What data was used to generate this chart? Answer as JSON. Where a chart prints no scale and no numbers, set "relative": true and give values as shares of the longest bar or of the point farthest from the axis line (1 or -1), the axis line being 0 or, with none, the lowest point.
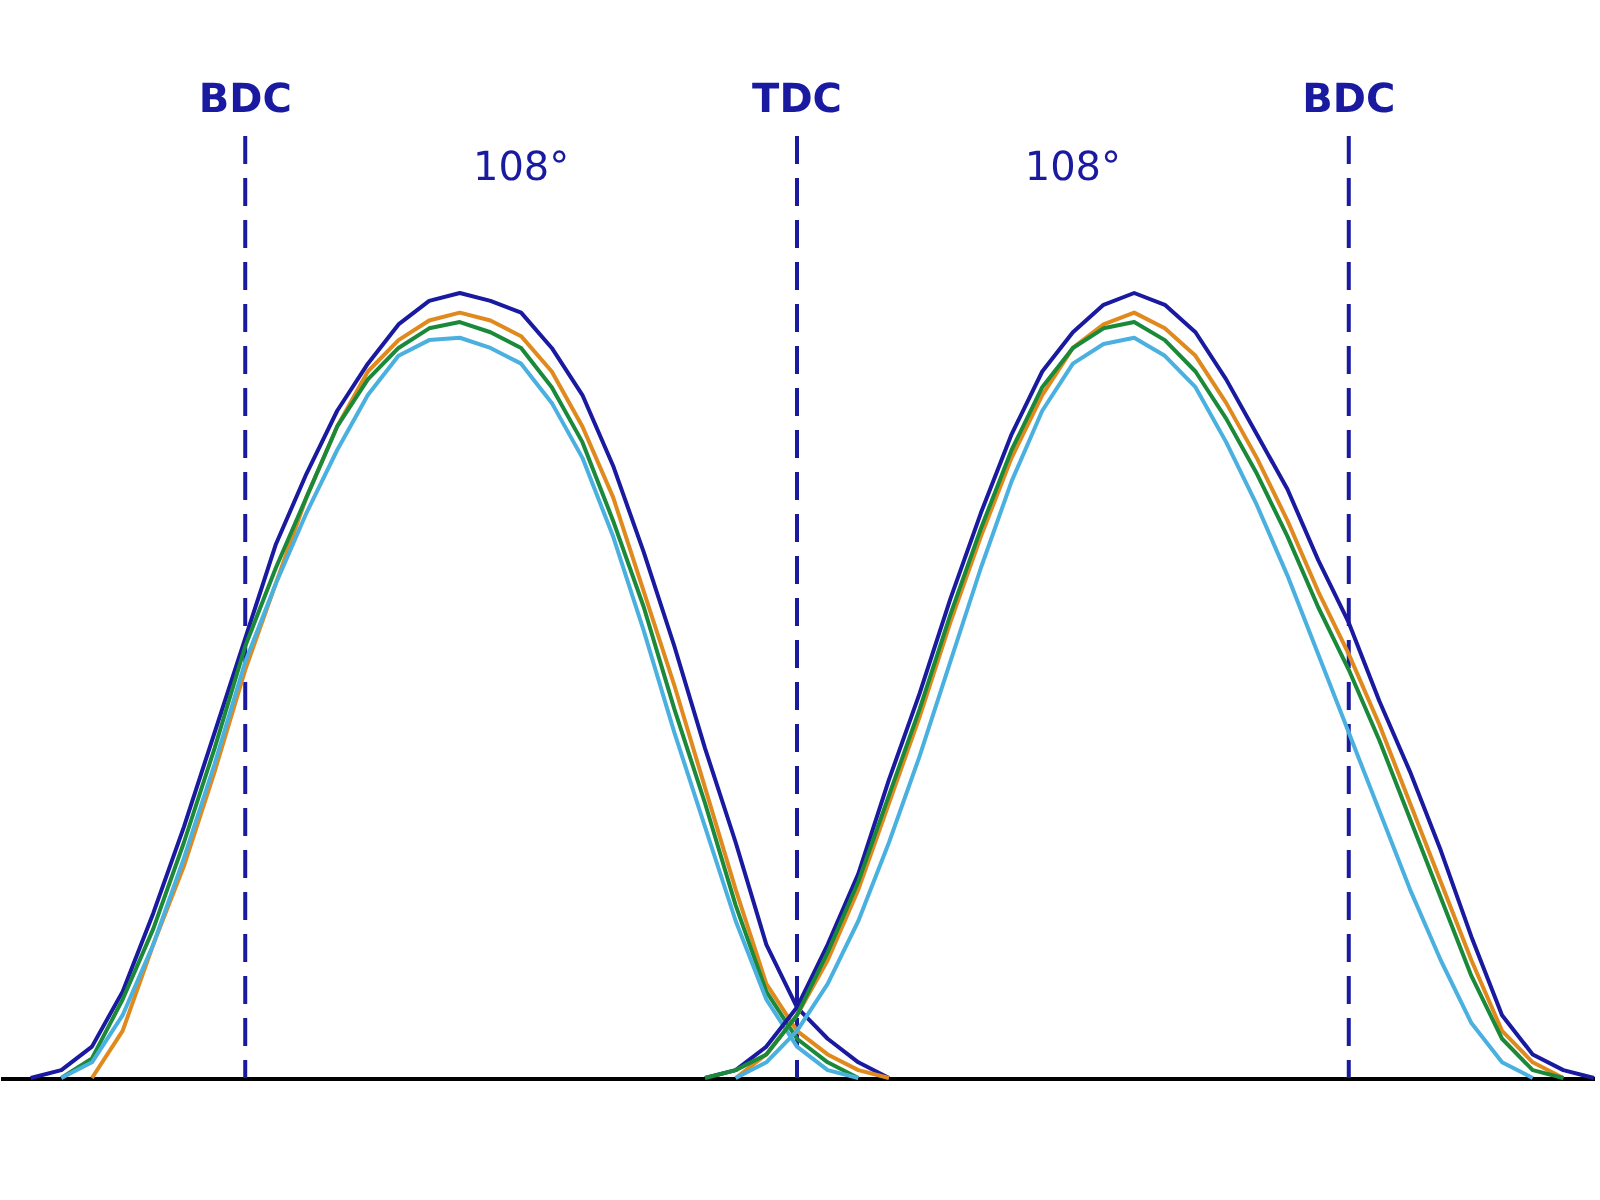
{
  "chart_data": {
    "type": "line",
    "relative": true,
    "grid": "x",
    "marker": "none",
    "line_style": "solid",
    "categories": [
      null,
      null,
      null,
      null,
      null,
      null,
      null,
      null,
      "BDC",
      null,
      null,
      null,
      null,
      null,
      null,
      null,
      null,
      null,
      null,
      null,
      null,
      null,
      null,
      null,
      null,
      null,
      "TDC",
      null,
      null,
      null,
      null,
      null,
      null,
      null,
      null,
      null,
      null,
      null,
      null,
      null,
      null,
      null,
      null,
      null,
      "BDC",
      null,
      null,
      null,
      null,
      null,
      null,
      null,
      null
    ],
    "series": [
      {
        "color": "#1a1aa0",
        "values": [
          null,
          0,
          0.01,
          0.04,
          0.11,
          0.21,
          0.32,
          0.44,
          0.56,
          0.68,
          0.77,
          0.85,
          0.91,
          0.96,
          0.99,
          1,
          0.99,
          0.975,
          0.93,
          0.87,
          0.78,
          0.67,
          0.55,
          0.42,
          0.3,
          0.17,
          0.09,
          0.05,
          0.02,
          0,
          null,
          null,
          null,
          null,
          null,
          null,
          null,
          null,
          null,
          null,
          null,
          null,
          null,
          null,
          null,
          null,
          null,
          null,
          null,
          null,
          null,
          null,
          null
        ]
      },
      {
        "color": "#e08a1e",
        "values": [
          null,
          null,
          null,
          0,
          0.06,
          0.17,
          0.27,
          0.39,
          0.52,
          0.63,
          0.74,
          0.83,
          0.9,
          0.94,
          0.965,
          0.975,
          0.965,
          0.945,
          0.9,
          0.83,
          0.74,
          0.62,
          0.5,
          0.37,
          0.24,
          0.12,
          0.06,
          0.03,
          0.01,
          0,
          null,
          null,
          null,
          null,
          null,
          null,
          null,
          null,
          null,
          null,
          null,
          null,
          null,
          null,
          null,
          null,
          null,
          null,
          null,
          null,
          null,
          null,
          null
        ]
      },
      {
        "color": "#1a8a3a",
        "values": [
          null,
          null,
          0,
          0.025,
          0.1,
          0.19,
          0.3,
          0.42,
          0.55,
          0.65,
          0.74,
          0.83,
          0.89,
          0.93,
          0.955,
          0.963,
          0.95,
          0.93,
          0.88,
          0.81,
          0.71,
          0.6,
          0.47,
          0.35,
          0.22,
          0.11,
          0.05,
          0.02,
          0,
          null,
          null,
          null,
          null,
          null,
          null,
          null,
          null,
          null,
          null,
          null,
          null,
          null,
          null,
          null,
          null,
          null,
          null,
          null,
          null,
          null,
          null,
          null,
          null
        ]
      },
      {
        "color": "#4ab0e0",
        "values": [
          null,
          null,
          0,
          0.02,
          0.08,
          0.17,
          0.28,
          0.4,
          0.53,
          0.63,
          0.72,
          0.8,
          0.87,
          0.92,
          0.94,
          0.943,
          0.93,
          0.91,
          0.86,
          0.79,
          0.69,
          0.57,
          0.44,
          0.32,
          0.2,
          0.1,
          0.04,
          0.01,
          0,
          null,
          null,
          null,
          null,
          null,
          null,
          null,
          null,
          null,
          null,
          null,
          null,
          null,
          null,
          null,
          null,
          null,
          null,
          null,
          null,
          null,
          null,
          null,
          null
        ]
      },
      {
        "color": "#1a1aa0",
        "values": [
          null,
          null,
          null,
          null,
          null,
          null,
          null,
          null,
          null,
          null,
          null,
          null,
          null,
          null,
          null,
          null,
          null,
          null,
          null,
          null,
          null,
          null,
          null,
          0,
          0.01,
          0.04,
          0.09,
          0.17,
          0.26,
          0.38,
          0.49,
          0.61,
          0.72,
          0.82,
          0.9,
          0.95,
          0.985,
          1,
          0.985,
          0.95,
          0.89,
          0.82,
          0.75,
          0.66,
          0.58,
          0.48,
          0.39,
          0.29,
          0.18,
          0.08,
          0.03,
          0.01,
          0
        ]
      },
      {
        "color": "#e08a1e",
        "values": [
          null,
          null,
          null,
          null,
          null,
          null,
          null,
          null,
          null,
          null,
          null,
          null,
          null,
          null,
          null,
          null,
          null,
          null,
          null,
          null,
          null,
          null,
          null,
          null,
          0,
          0.03,
          0.08,
          0.15,
          0.24,
          0.35,
          0.46,
          0.58,
          0.69,
          0.79,
          0.87,
          0.93,
          0.96,
          0.975,
          0.955,
          0.92,
          0.86,
          0.79,
          0.71,
          0.62,
          0.54,
          0.45,
          0.35,
          0.25,
          0.15,
          0.06,
          0.02,
          0,
          null
        ]
      },
      {
        "color": "#1a8a3a",
        "values": [
          null,
          null,
          null,
          null,
          null,
          null,
          null,
          null,
          null,
          null,
          null,
          null,
          null,
          null,
          null,
          null,
          null,
          null,
          null,
          null,
          null,
          null,
          null,
          0,
          0.01,
          0.03,
          0.08,
          0.16,
          0.25,
          0.36,
          0.47,
          0.59,
          0.7,
          0.8,
          0.88,
          0.93,
          0.955,
          0.963,
          0.94,
          0.9,
          0.84,
          0.77,
          0.69,
          0.6,
          0.52,
          0.43,
          0.33,
          0.23,
          0.13,
          0.05,
          0.01,
          0,
          null
        ]
      },
      {
        "color": "#4ab0e0",
        "values": [
          null,
          null,
          null,
          null,
          null,
          null,
          null,
          null,
          null,
          null,
          null,
          null,
          null,
          null,
          null,
          null,
          null,
          null,
          null,
          null,
          null,
          null,
          null,
          null,
          0,
          0.02,
          0.06,
          0.12,
          0.2,
          0.3,
          0.41,
          0.53,
          0.65,
          0.76,
          0.85,
          0.91,
          0.935,
          0.943,
          0.92,
          0.88,
          0.81,
          0.73,
          0.64,
          0.54,
          0.44,
          0.34,
          0.24,
          0.15,
          0.07,
          0.02,
          0,
          null,
          null
        ]
      }
    ],
    "annotations": [
      "108°",
      "108°"
    ]
  }
}
